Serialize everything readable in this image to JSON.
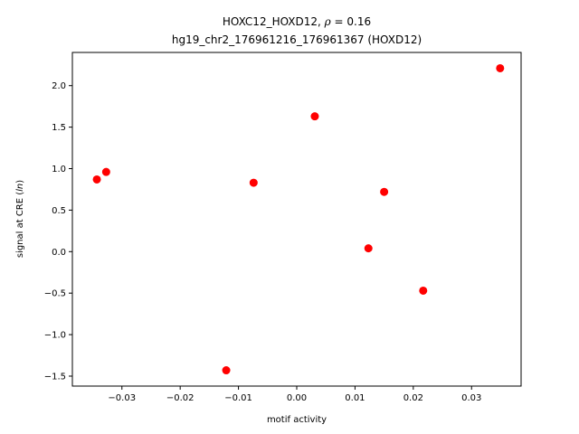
{
  "chart_data": {
    "type": "scatter",
    "title_line1_prefix": "HOXC12_HOXD12, ",
    "title_line1_rho": "ρ",
    "title_line1_suffix": " = 0.16",
    "title_line2": "hg19_chr2_176961216_176961367 (HOXD12)",
    "xlabel": "motif activity",
    "ylabel_prefix": "signal at CRE (",
    "ylabel_italic": "ln",
    "ylabel_suffix": ")",
    "xlim": [
      -0.0385,
      0.0385
    ],
    "ylim": [
      -1.62,
      2.4
    ],
    "xticks": [
      -0.03,
      -0.02,
      -0.01,
      0.0,
      0.01,
      0.02,
      0.03
    ],
    "xtick_labels": [
      "−0.03",
      "−0.02",
      "−0.01",
      "0.00",
      "0.01",
      "0.02",
      "0.03"
    ],
    "yticks": [
      -1.5,
      -1.0,
      -0.5,
      0.0,
      0.5,
      1.0,
      1.5,
      2.0
    ],
    "ytick_labels": [
      "−1.5",
      "−1.0",
      "−0.5",
      "0.0",
      "0.5",
      "1.0",
      "1.5",
      "2.0"
    ],
    "marker_color": "#ff0000",
    "grid": false,
    "points": [
      {
        "x": -0.0343,
        "y": 0.87
      },
      {
        "x": -0.0327,
        "y": 0.96
      },
      {
        "x": -0.0121,
        "y": -1.43
      },
      {
        "x": -0.0074,
        "y": 0.83
      },
      {
        "x": 0.0031,
        "y": 1.63
      },
      {
        "x": 0.0123,
        "y": 0.04
      },
      {
        "x": 0.015,
        "y": 0.72
      },
      {
        "x": 0.0217,
        "y": -0.47
      },
      {
        "x": 0.0349,
        "y": 2.21
      }
    ]
  }
}
